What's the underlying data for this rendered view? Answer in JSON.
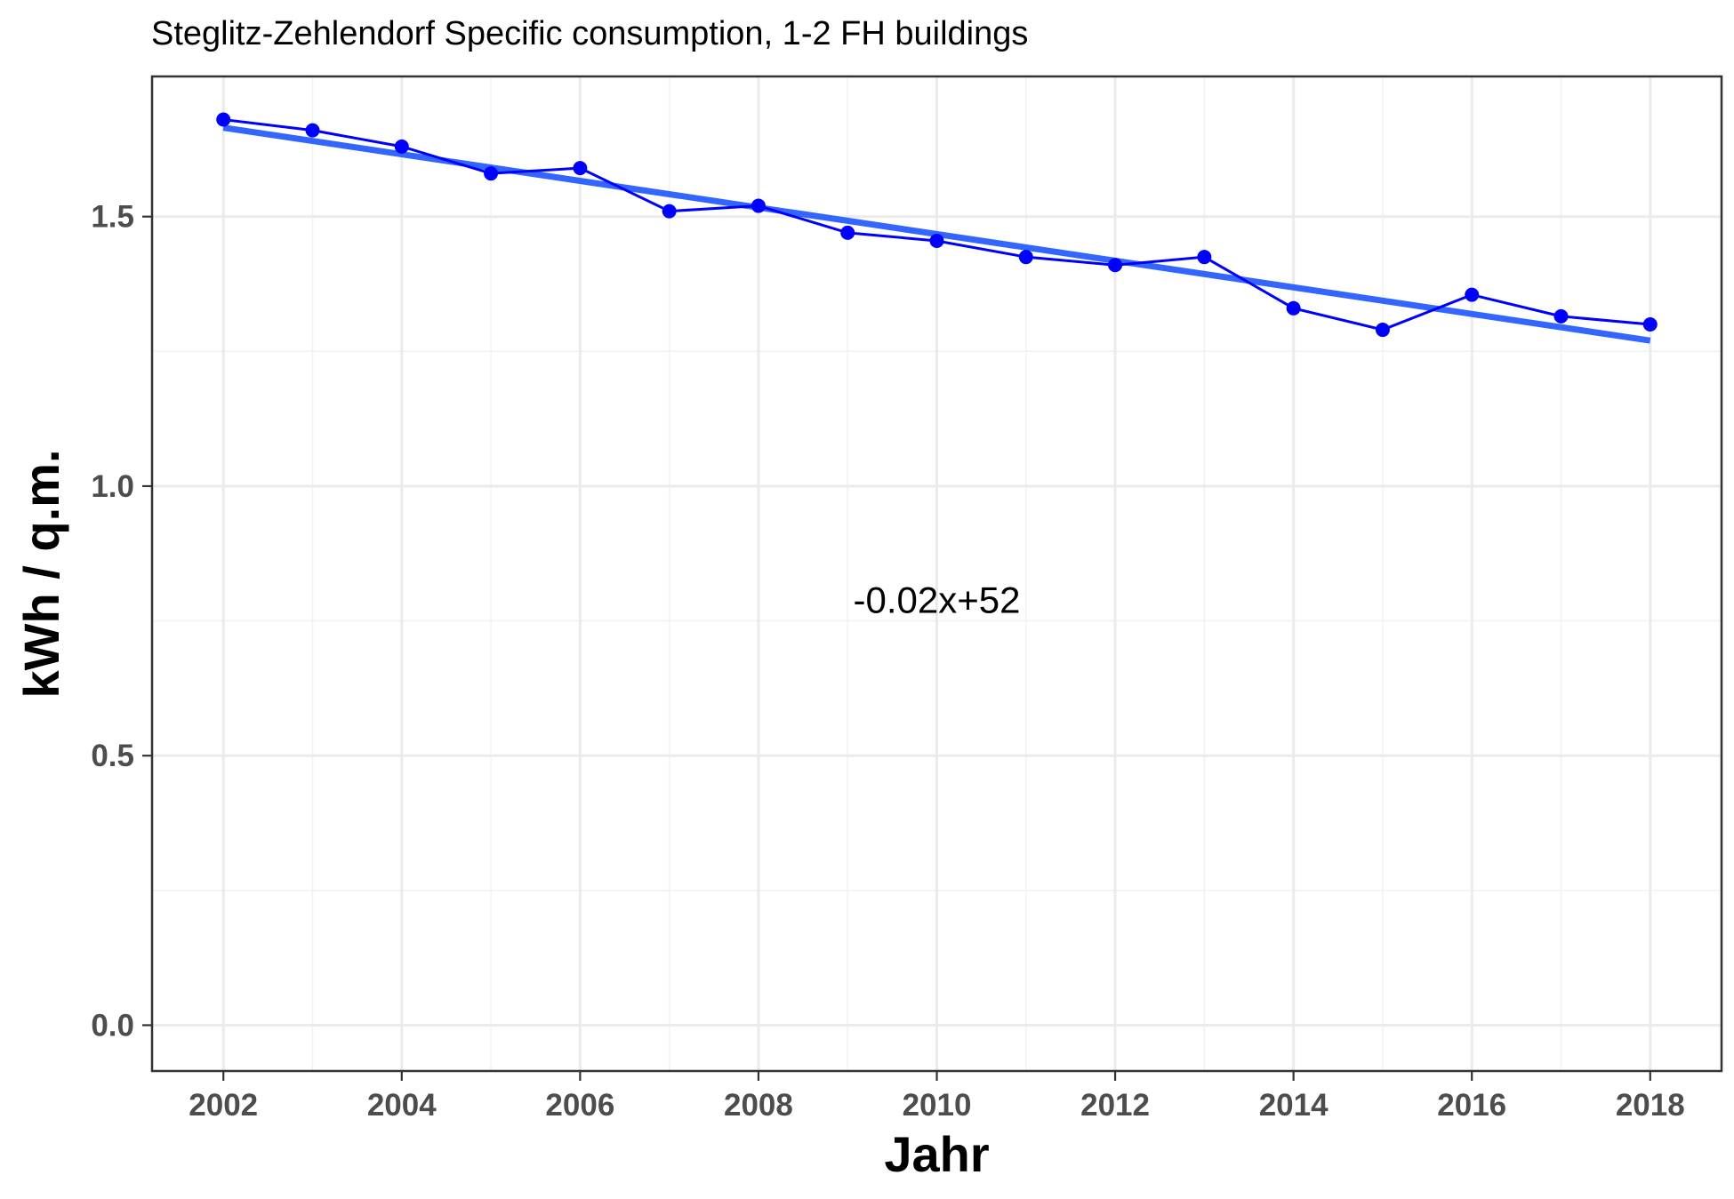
{
  "chart_data": {
    "type": "line",
    "title": "Steglitz-Zehlendorf Specific consumption, 1-2 FH buildings",
    "xlabel": "Jahr",
    "ylabel": "kWh / q.m.",
    "xlim": [
      2001.2,
      2018.8
    ],
    "ylim": [
      -0.085,
      1.76
    ],
    "x_ticks": [
      2002,
      2004,
      2006,
      2008,
      2010,
      2012,
      2014,
      2016,
      2018
    ],
    "x_tick_labels": [
      "2002",
      "2004",
      "2006",
      "2008",
      "2010",
      "2012",
      "2014",
      "2016",
      "2018"
    ],
    "y_ticks": [
      0.0,
      0.5,
      1.0,
      1.5
    ],
    "y_tick_labels": [
      "0.0",
      "0.5",
      "1.0",
      "1.5"
    ],
    "grid": true,
    "series": [
      {
        "x": [
          2002,
          2003,
          2004,
          2005,
          2006,
          2007,
          2008,
          2009,
          2010,
          2011,
          2012,
          2013,
          2014,
          2015,
          2016,
          2017,
          2018
        ],
        "values": [
          1.68,
          1.66,
          1.63,
          1.58,
          1.59,
          1.51,
          1.52,
          1.47,
          1.455,
          1.425,
          1.41,
          1.425,
          1.33,
          1.29,
          1.355,
          1.315,
          1.3
        ],
        "color": "#0000ff"
      }
    ],
    "trendline": {
      "x": [
        2002,
        2018
      ],
      "values": [
        1.665,
        1.27
      ],
      "color": "#3366ff"
    },
    "annotation": {
      "text": "-0.02x+52",
      "x": 2010,
      "y": 0.79
    }
  }
}
